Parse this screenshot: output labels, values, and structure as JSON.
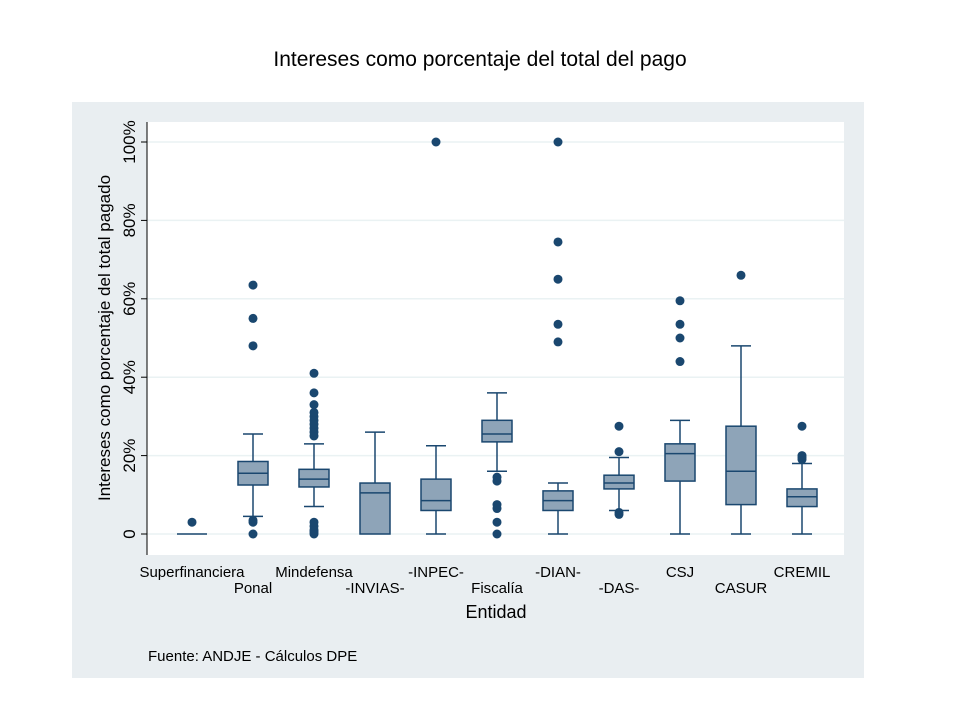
{
  "title": "Intereses como porcentaje del total del pago",
  "source_note": "Fuente: ANDJE - Cálculos DPE",
  "colors": {
    "box_fill": "#8ea4b8",
    "box_stroke": "#1a476f",
    "outlier": "#1a476f",
    "panel_bg": "#e9eef1",
    "plot_bg": "#ffffff",
    "grid": "#eaf2f3"
  },
  "chart_data": {
    "type": "box",
    "title": "Intereses como porcentaje del total del pago",
    "xlabel": "Entidad",
    "ylabel": "Intereses como porcentaje del total pagado",
    "ylim": [
      0,
      100
    ],
    "yticks": [
      0,
      20,
      40,
      60,
      80,
      100
    ],
    "ytick_labels": [
      "0",
      "20%",
      "40%",
      "60%",
      "80%",
      "100%"
    ],
    "grid": true,
    "categories": [
      "Superfinanciera",
      "Ponal",
      "Mindefensa",
      "-INVIAS-",
      "-INPEC-",
      "Fiscalía",
      "-DIAN-",
      "-DAS-",
      "CSJ",
      "CASUR",
      "CREMIL"
    ],
    "boxes": [
      {
        "name": "Superfinanciera",
        "whisker_low": 0,
        "q1": 0,
        "median": 0,
        "q3": 0,
        "whisker_high": 0,
        "outliers": [
          3
        ]
      },
      {
        "name": "Ponal",
        "whisker_low": 4.5,
        "q1": 12.5,
        "median": 15.5,
        "q3": 18.5,
        "whisker_high": 25.5,
        "outliers": [
          0,
          3,
          3.5,
          48,
          55,
          63.5
        ]
      },
      {
        "name": "Mindefensa",
        "whisker_low": 7,
        "q1": 12,
        "median": 14,
        "q3": 16.5,
        "whisker_high": 23,
        "outliers": [
          0,
          0.5,
          1,
          2,
          3,
          25,
          26,
          27,
          28,
          29,
          30,
          31,
          33,
          36,
          41
        ]
      },
      {
        "name": "-INVIAS-",
        "whisker_low": 0,
        "q1": 0,
        "median": 10.5,
        "q3": 13,
        "whisker_high": 26,
        "outliers": []
      },
      {
        "name": "-INPEC-",
        "whisker_low": 0,
        "q1": 6,
        "median": 8.5,
        "q3": 14,
        "whisker_high": 22.5,
        "outliers": [
          100
        ]
      },
      {
        "name": "Fiscalía",
        "whisker_low": 16,
        "q1": 23.5,
        "median": 25.5,
        "q3": 29,
        "whisker_high": 36,
        "outliers": [
          0,
          3,
          6.5,
          7.5,
          13.5,
          14.5
        ]
      },
      {
        "name": "-DIAN-",
        "whisker_low": 0,
        "q1": 6,
        "median": 8.5,
        "q3": 11,
        "whisker_high": 13,
        "outliers": [
          49,
          53.5,
          65,
          74.5,
          100
        ]
      },
      {
        "name": "-DAS-",
        "whisker_low": 6,
        "q1": 11.5,
        "median": 13,
        "q3": 15,
        "whisker_high": 19.5,
        "outliers": [
          5,
          5.5,
          21,
          27.5
        ]
      },
      {
        "name": "CSJ",
        "whisker_low": 0,
        "q1": 13.5,
        "median": 20.5,
        "q3": 23,
        "whisker_high": 29,
        "outliers": [
          44,
          50,
          53.5,
          59.5
        ]
      },
      {
        "name": "CASUR",
        "whisker_low": 0,
        "q1": 7.5,
        "median": 16,
        "q3": 27.5,
        "whisker_high": 48,
        "outliers": [
          66
        ]
      },
      {
        "name": "CREMIL",
        "whisker_low": 0,
        "q1": 7,
        "median": 9.5,
        "q3": 11.5,
        "whisker_high": 18,
        "outliers": [
          19,
          19.5,
          20,
          27.5
        ]
      }
    ]
  }
}
